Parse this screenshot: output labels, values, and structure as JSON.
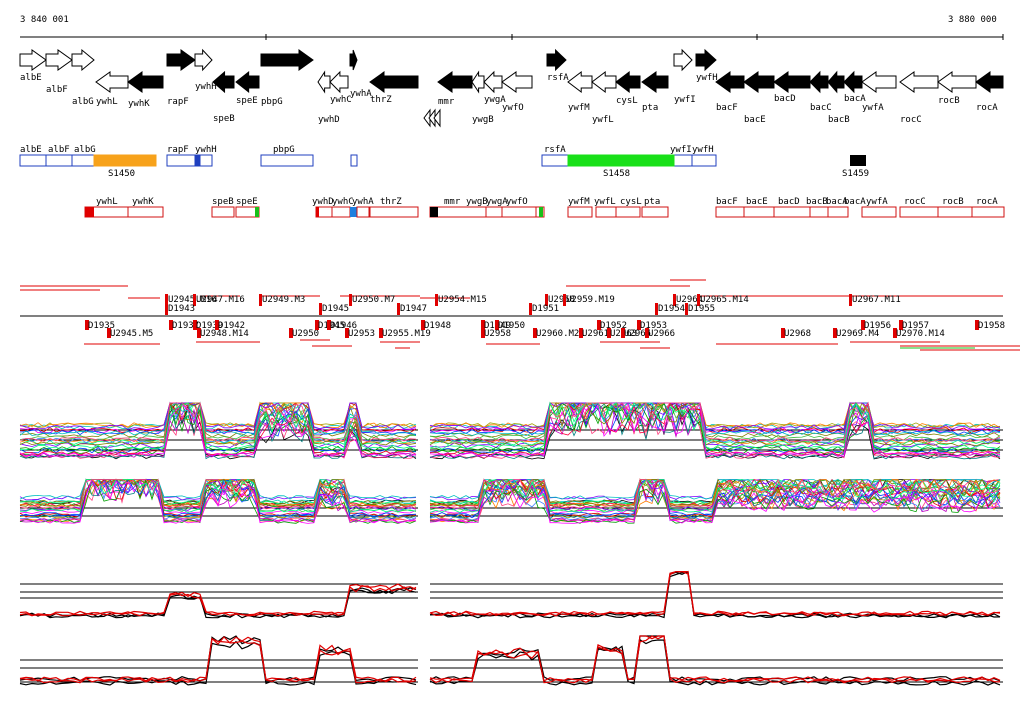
{
  "coordinates": {
    "start_label": "3 840 001",
    "end_label": "3 880 000"
  },
  "colors": {
    "axis": "#000000",
    "gene_fill_plus": "#000000",
    "gene_outline": "#000000",
    "segment_outline_top": "#1f3fbf",
    "segment_outline_bottom": "#d01010",
    "S1450": "#f7a21b",
    "S1458": "#19e019",
    "S1459": "#000000",
    "tu_red": "#e00000",
    "tu_blue": "#1f7fdf",
    "tu_green": "#19c019",
    "tu_black": "#000000",
    "profile_main": "#000000",
    "profile_ratio": "#e00000"
  },
  "genes": [
    {
      "name": "albE",
      "strand": "+",
      "filled": false
    },
    {
      "name": "albF",
      "strand": "+",
      "filled": false
    },
    {
      "name": "albG",
      "strand": "+",
      "filled": false
    },
    {
      "name": "ywhL",
      "strand": "-",
      "filled": false
    },
    {
      "name": "ywhK",
      "strand": "-",
      "filled": true
    },
    {
      "name": "rapF",
      "strand": "+",
      "filled": true
    },
    {
      "name": "ywhH",
      "strand": "+",
      "filled": false
    },
    {
      "name": "speB",
      "strand": "-",
      "filled": true
    },
    {
      "name": "speE",
      "strand": "-",
      "filled": true
    },
    {
      "name": "pbpG",
      "strand": "+",
      "filled": true
    },
    {
      "name": "ywhD",
      "strand": "-",
      "filled": false
    },
    {
      "name": "ywhC",
      "strand": "-",
      "filled": false
    },
    {
      "name": "ywhA",
      "strand": "+",
      "filled": true
    },
    {
      "name": "thrZ",
      "strand": "-",
      "filled": true
    },
    {
      "name": "mmr",
      "strand": "-",
      "filled": true
    },
    {
      "name": "ywgB",
      "strand": "-",
      "filled": false
    },
    {
      "name": "ywgA",
      "strand": "-",
      "filled": false
    },
    {
      "name": "ywfO",
      "strand": "-",
      "filled": false
    },
    {
      "name": "rsfA",
      "strand": "+",
      "filled": true
    },
    {
      "name": "ywfM",
      "strand": "-",
      "filled": false
    },
    {
      "name": "ywfL",
      "strand": "-",
      "filled": false
    },
    {
      "name": "cysL",
      "strand": "-",
      "filled": true
    },
    {
      "name": "pta",
      "strand": "-",
      "filled": true
    },
    {
      "name": "ywfI",
      "strand": "+",
      "filled": false
    },
    {
      "name": "ywfH",
      "strand": "+",
      "filled": true
    },
    {
      "name": "bacF",
      "strand": "-",
      "filled": true
    },
    {
      "name": "bacE",
      "strand": "-",
      "filled": true
    },
    {
      "name": "bacD",
      "strand": "-",
      "filled": true
    },
    {
      "name": "bacC",
      "strand": "-",
      "filled": true
    },
    {
      "name": "bacB",
      "strand": "-",
      "filled": true
    },
    {
      "name": "bacA",
      "strand": "-",
      "filled": true
    },
    {
      "name": "ywfA",
      "strand": "-",
      "filled": false
    },
    {
      "name": "rocC",
      "strand": "-",
      "filled": false
    },
    {
      "name": "rocB",
      "strand": "-",
      "filled": false
    },
    {
      "name": "rocA",
      "strand": "-",
      "filled": true
    }
  ],
  "top_segments": {
    "labels": [
      "albE",
      "albF",
      "albG",
      "rapF",
      "ywhH",
      "pbpG",
      "rsfA",
      "ywfI",
      "ywfH"
    ],
    "specials": [
      "S1450",
      "S1458",
      "S1459"
    ]
  },
  "bottom_segments": {
    "labels": [
      "ywhL",
      "ywhK",
      "speB",
      "speE",
      "ywhD",
      "ywhC",
      "ywhA",
      "thrZ",
      "mmr",
      "ywgB",
      "ywgA",
      "ywfO",
      "ywfM",
      "ywfL",
      "cysL",
      "pta",
      "bacF",
      "bacE",
      "bacD",
      "bacB",
      "bacA",
      "bacA",
      "ywfA",
      "rocC",
      "rocB",
      "rocA"
    ]
  },
  "features_above": [
    "U2945.M16",
    "U2947.M16",
    "U2949.M3",
    "U2950.M7",
    "U2954.M15",
    "U2958",
    "U2959.M19",
    "U2964",
    "U2965.M14",
    "U2967.M11",
    "D1943",
    "D1945",
    "D1947",
    "D1951",
    "D1954",
    "D1955"
  ],
  "features_below": [
    "D1935",
    "U2945.M5",
    "D1937",
    "D1939",
    "D1942",
    "U2948.M14",
    "U2950",
    "D1945",
    "D1946",
    "U2953",
    "U2955.M19",
    "D1948",
    "D1949",
    "D1950",
    "U2958",
    "U2960.M21",
    "U2961",
    "D1952",
    "D1953",
    "U2963",
    "U2965",
    "U2966",
    "U2968",
    "U2969.M4",
    "D1956",
    "D1957",
    "U2970.M14",
    "D1958"
  ]
}
